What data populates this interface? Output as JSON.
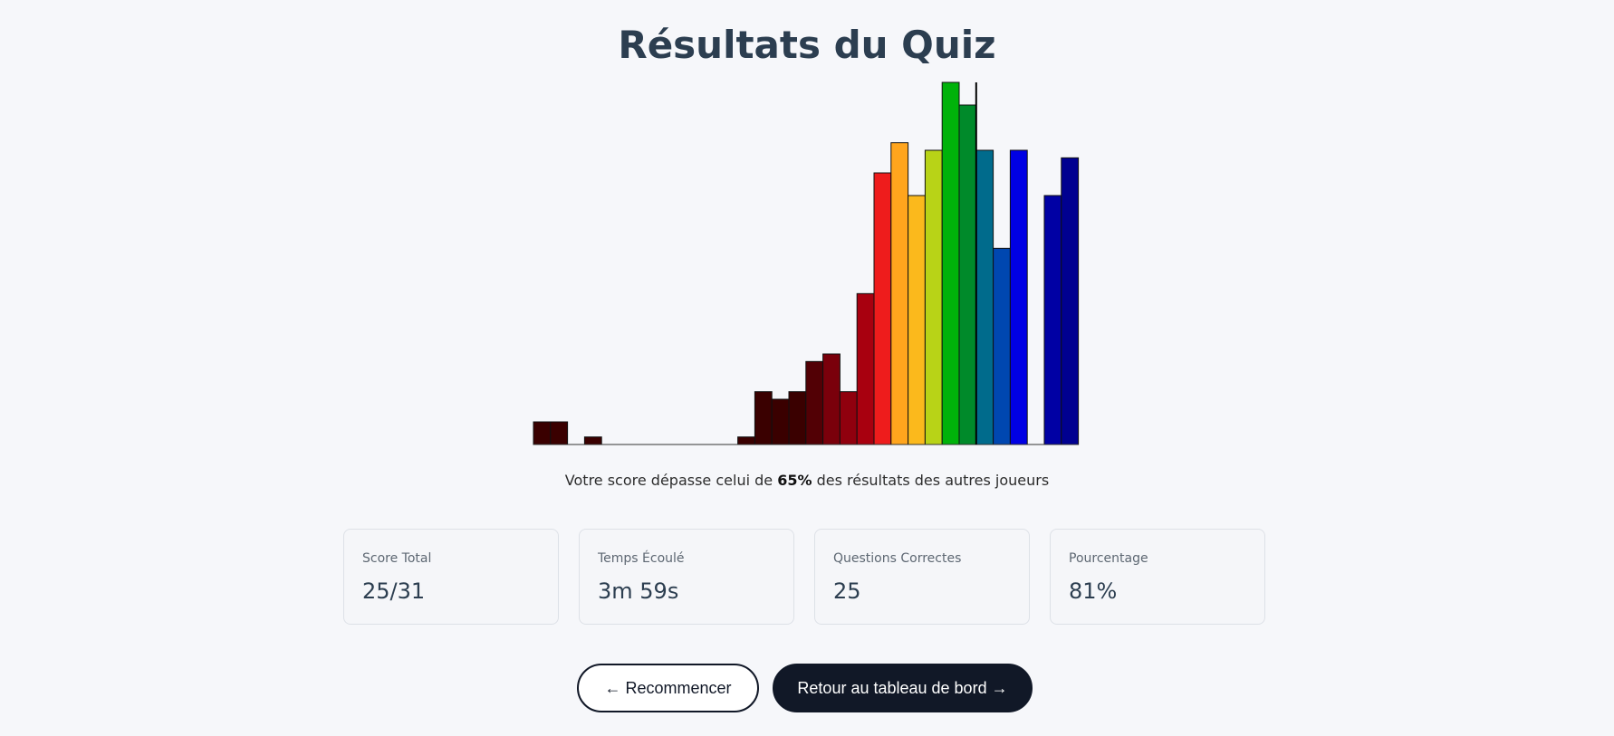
{
  "page": {
    "title": "Résultats du Quiz"
  },
  "percentile": {
    "prefix": "Votre score dépasse celui de ",
    "value": "65%",
    "suffix": " des résultats des autres joueurs"
  },
  "stats": [
    {
      "label": "Score Total",
      "value": "25/31"
    },
    {
      "label": "Temps Écoulé",
      "value": "3m 59s"
    },
    {
      "label": "Questions Correctes",
      "value": "25"
    },
    {
      "label": "Pourcentage",
      "value": "81%"
    }
  ],
  "actions": {
    "restart_label": "← Recommencer",
    "dashboard_label": "Retour au tableau de bord →"
  },
  "chart_data": {
    "type": "bar",
    "title": "",
    "xlabel": "",
    "ylabel": "",
    "ylim": [
      0,
      48
    ],
    "grid": false,
    "marker_after_index": 25,
    "values": [
      3,
      3,
      0,
      1,
      0,
      0,
      0,
      0,
      0,
      0,
      0,
      0,
      1,
      7,
      6,
      7,
      11,
      12,
      7,
      20,
      36,
      40,
      33,
      39,
      48,
      45,
      39,
      26,
      39,
      0,
      33,
      38
    ],
    "colors": [
      "#3a0000",
      "#3a0000",
      "#3a0000",
      "#3a0000",
      "#3a0000",
      "#3a0000",
      "#3a0000",
      "#3a0000",
      "#3a0000",
      "#3a0000",
      "#3a0000",
      "#3a0000",
      "#3a0000",
      "#3a0000",
      "#3a0000",
      "#3a0000",
      "#520005",
      "#7a000b",
      "#90000e",
      "#a8000f",
      "#ee1c1c",
      "#ffa51d",
      "#fbb91c",
      "#b8d317",
      "#00b20a",
      "#008a2a",
      "#006b8c",
      "#0047b0",
      "#0000e4",
      "#0000e4",
      "#0000a4",
      "#000090"
    ]
  }
}
